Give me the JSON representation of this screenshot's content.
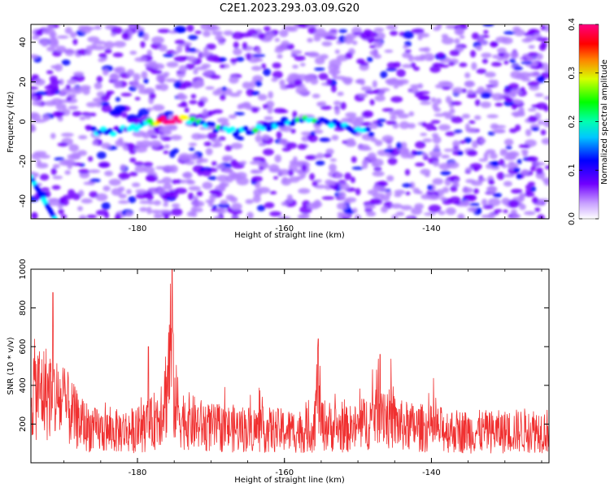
{
  "title": "C2E1.2023.293.03.09.G20",
  "chart_data": [
    {
      "type": "heatmap",
      "xlabel": "Height of straight line (km)",
      "ylabel": "Frequency (Hz)",
      "xlim": [
        -194.5,
        -124
      ],
      "ylim": [
        -49,
        49
      ],
      "x_ticks": [
        -180,
        -160,
        -140
      ],
      "y_ticks": [
        -40,
        -20,
        0,
        20,
        40
      ],
      "x_tick_labels": [
        "-180",
        "-160",
        "-140"
      ],
      "y_tick_labels": [
        "-40",
        "-20",
        "0",
        "20",
        "40"
      ],
      "colorbar": {
        "label": "Normalized spectral amplitude",
        "range": [
          0.0,
          0.4
        ],
        "ticks": [
          "0.0",
          "0.1",
          "0.2",
          "0.3",
          "0.4"
        ],
        "colors": [
          "#ffffff",
          "#b080ff",
          "#7000ff",
          "#0000ff",
          "#00ffff",
          "#00ff00",
          "#ffff00",
          "#ff0000",
          "#ff0080"
        ]
      },
      "features": [
        {
          "x_range": [
            -186,
            -148
          ],
          "y_center": -2,
          "description_value": "line near 0 Hz",
          "peak": 0.38,
          "peak_x": -175.5
        },
        {
          "x_range": [
            -194.5,
            -191
          ],
          "y_range": [
            -50,
            -28
          ],
          "peak": 0.2
        }
      ],
      "grid": false
    },
    {
      "type": "line",
      "xlabel": "Height of straight line (km)",
      "ylabel": "SNR (10 * v/v)",
      "xlim": [
        -194.5,
        -124
      ],
      "ylim": [
        0,
        1000
      ],
      "x_ticks": [
        -180,
        -160,
        -140
      ],
      "y_ticks": [
        200,
        400,
        600,
        800,
        1000
      ],
      "x_tick_labels": [
        "-180",
        "-160",
        "-140"
      ],
      "y_tick_labels": [
        "200",
        "400",
        "600",
        "800",
        "1000"
      ],
      "color": "#f03030",
      "series_profile": {
        "x": [
          -194.5,
          -192,
          -190,
          -188,
          -186,
          -184,
          -182,
          -180,
          -178,
          -177,
          -176,
          -175.5,
          -175,
          -174,
          -172,
          -170,
          -165,
          -160,
          -157,
          -156,
          -155.4,
          -155,
          -152,
          -150,
          -148,
          -147,
          -146,
          -144,
          -140,
          -135,
          -130,
          -126,
          -124
        ],
        "y": [
          380,
          360,
          300,
          210,
          170,
          160,
          165,
          170,
          200,
          260,
          380,
          620,
          330,
          230,
          200,
          180,
          175,
          165,
          165,
          180,
          420,
          200,
          170,
          180,
          230,
          330,
          230,
          190,
          175,
          160,
          160,
          170,
          165
        ]
      },
      "peaks": [
        {
          "x": -175.3,
          "y": 1000
        },
        {
          "x": -191.5,
          "y": 880
        },
        {
          "x": -155.4,
          "y": 640
        },
        {
          "x": -147.0,
          "y": 560
        },
        {
          "x": -178.5,
          "y": 600
        }
      ],
      "grid": false
    }
  ]
}
